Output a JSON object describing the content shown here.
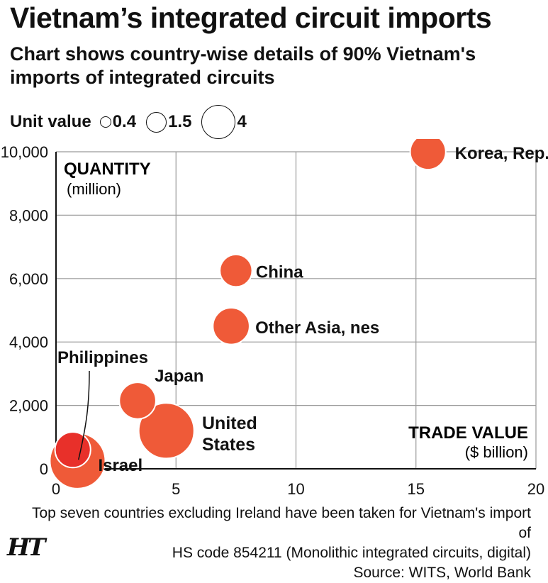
{
  "title": "Vietnam’s integrated circuit imports",
  "subtitle": "Chart shows country-wise details of 90% Vietnam's imports of integrated circuits",
  "legend": {
    "label": "Unit value",
    "items": [
      {
        "label": "0.4",
        "value": 0.4
      },
      {
        "label": "1.5",
        "value": 1.5
      },
      {
        "label": "4",
        "value": 4
      }
    ]
  },
  "chart_data": {
    "type": "scatter",
    "xlabel": "TRADE VALUE",
    "xunit": "($ billion)",
    "ylabel": "QUANTITY",
    "yunit": "(million)",
    "xlim": [
      0,
      20
    ],
    "ylim": [
      0,
      10000
    ],
    "x_ticks": [
      0,
      5,
      10,
      15,
      20
    ],
    "x_tick_labels": [
      "0",
      "5",
      "10",
      "15",
      "20"
    ],
    "y_ticks": [
      0,
      2000,
      4000,
      6000,
      8000,
      10000
    ],
    "y_tick_labels": [
      "0",
      "2,000",
      "4,000",
      "6,000",
      "8,000",
      "10,000"
    ],
    "grid": true,
    "size_encoding": "Unit value",
    "points": [
      {
        "label": "Korea, Rep.",
        "x": 15.5,
        "y": 10000,
        "size": 1.5
      },
      {
        "label": "China",
        "x": 7.5,
        "y": 6250,
        "size": 1.2
      },
      {
        "label": "Other Asia, nes",
        "x": 7.3,
        "y": 4500,
        "size": 1.6
      },
      {
        "label": "Japan",
        "x": 3.4,
        "y": 2150,
        "size": 1.6
      },
      {
        "label": "United States",
        "x": 4.6,
        "y": 1200,
        "size": 4
      },
      {
        "label": "Israel",
        "x": 0.9,
        "y": 250,
        "size": 4
      },
      {
        "label": "Philippines",
        "x": 0.7,
        "y": 600,
        "size": 1.5
      }
    ],
    "marker_color": "#ef5a38",
    "highlight_color": "#e8302a"
  },
  "footnote": {
    "line1": "Top seven countries excluding Ireland have been taken for Vietnam's import of",
    "line2": "HS code 854211 (Monolithic integrated circuits, digital)",
    "source": "Source: WITS, World Bank"
  },
  "brand": "HT"
}
